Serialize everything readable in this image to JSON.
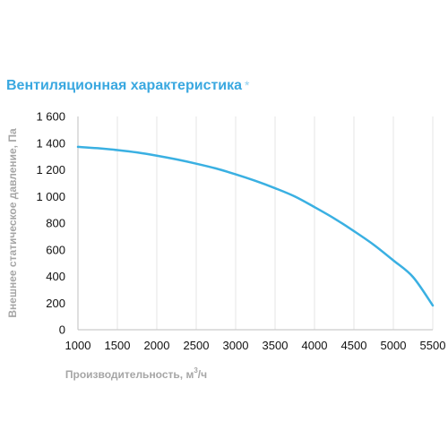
{
  "chart_data": {
    "type": "line",
    "title": "Вентиляционная характеристика",
    "title_mark": "*",
    "xlabel": "Производительность, м",
    "xlabel_sup": "3",
    "xlabel_suffix": "/ч",
    "ylabel": "Внешнее статическое давление, Па",
    "xlim": [
      1000,
      5500
    ],
    "ylim": [
      0,
      1600
    ],
    "x_ticks": [
      1000,
      1500,
      2000,
      2500,
      3000,
      3500,
      4000,
      4500,
      5000,
      5500
    ],
    "y_ticks": [
      0,
      200,
      400,
      600,
      800,
      1000,
      1200,
      1400,
      1600
    ],
    "x_tick_labels": [
      "1000",
      "1500",
      "2000",
      "2500",
      "3000",
      "3500",
      "4000",
      "4500",
      "5000",
      "5500"
    ],
    "y_tick_labels": [
      "0",
      "200",
      "400",
      "600",
      "800",
      "1 000",
      "1 200",
      "1 400",
      "1 600"
    ],
    "grid": "vertical",
    "legend": "none",
    "colors": {
      "line": "#3ab0e2",
      "title": "#3aa8e0",
      "grid": "#e6e6e6",
      "axis": "#bfbfbf",
      "axis_label": "#a6a6a6"
    },
    "series": [
      {
        "x": [
          1000,
          1250,
          1500,
          1750,
          2000,
          2250,
          2500,
          2750,
          3000,
          3250,
          3500,
          3750,
          4000,
          4250,
          4500,
          4750,
          5000,
          5250,
          5500
        ],
        "values": [
          1372,
          1362,
          1348,
          1330,
          1306,
          1278,
          1246,
          1210,
          1166,
          1117,
          1062,
          1000,
          920,
          835,
          740,
          638,
          520,
          395,
          182
        ]
      }
    ]
  }
}
